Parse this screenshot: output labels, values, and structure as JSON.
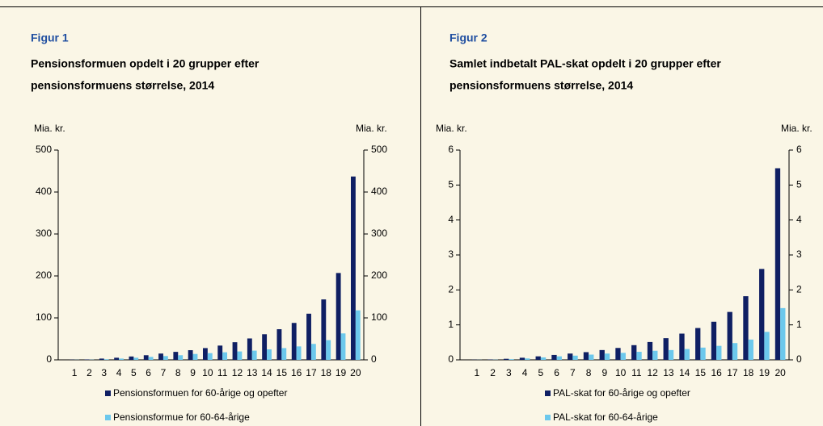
{
  "chart_data": [
    {
      "type": "bar",
      "figure": "Figur 1",
      "title": [
        "Pensionsformuen opdelt i 20 grupper efter",
        "pensionsformuens størrelse, 2014"
      ],
      "y_label": "Mia. kr.",
      "y2_label": "Mia. kr.",
      "categories": [
        "1",
        "2",
        "3",
        "4",
        "5",
        "6",
        "7",
        "8",
        "9",
        "10",
        "11",
        "12",
        "13",
        "14",
        "15",
        "16",
        "17",
        "18",
        "19",
        "20"
      ],
      "series": [
        {
          "name": "Pensionsformuen for 60-årige og opefter",
          "color": "#0f1f63",
          "values": [
            0.5,
            1,
            3,
            5,
            8,
            11,
            15,
            19,
            23,
            28,
            34,
            42,
            51,
            61,
            73,
            88,
            110,
            144,
            207,
            437
          ]
        },
        {
          "name": "Pensionsformue for 60-64-årige",
          "color": "#6cc8ec",
          "values": [
            0.3,
            0.5,
            1.5,
            3,
            5,
            7,
            9,
            11,
            14,
            16,
            18,
            20,
            22,
            25,
            28,
            32,
            38,
            47,
            63,
            118
          ]
        }
      ],
      "ylim": [
        0,
        500
      ],
      "yticks": [
        0,
        100,
        200,
        300,
        400,
        500
      ],
      "y2lim": [
        0,
        500
      ],
      "y2ticks": [
        0,
        100,
        200,
        300,
        400,
        500
      ]
    },
    {
      "type": "bar",
      "figure": "Figur 2",
      "title": [
        "Samlet indbetalt PAL-skat opdelt i 20 grupper efter",
        "pensionsformuens størrelse, 2014"
      ],
      "y_label": "Mia. kr.",
      "y2_label": "Mia. kr.",
      "categories": [
        "1",
        "2",
        "3",
        "4",
        "5",
        "6",
        "7",
        "8",
        "9",
        "10",
        "11",
        "12",
        "13",
        "14",
        "15",
        "16",
        "17",
        "18",
        "19",
        "20"
      ],
      "series": [
        {
          "name": "PAL-skat for 60-årige og opefter",
          "color": "#0f1f63",
          "values": [
            0.005,
            0.01,
            0.03,
            0.06,
            0.1,
            0.14,
            0.18,
            0.22,
            0.28,
            0.34,
            0.42,
            0.51,
            0.62,
            0.75,
            0.91,
            1.09,
            1.37,
            1.82,
            2.6,
            5.48
          ]
        },
        {
          "name": "PAL-skat for 60-64-årige",
          "color": "#6cc8ec",
          "values": [
            0.003,
            0.006,
            0.02,
            0.04,
            0.07,
            0.1,
            0.12,
            0.15,
            0.18,
            0.2,
            0.23,
            0.26,
            0.28,
            0.31,
            0.35,
            0.4,
            0.48,
            0.58,
            0.8,
            1.48
          ]
        }
      ],
      "ylim": [
        0,
        6
      ],
      "yticks": [
        0,
        1,
        2,
        3,
        4,
        5,
        6
      ],
      "y2lim": [
        0,
        6
      ],
      "y2ticks": [
        0,
        1,
        2,
        3,
        4,
        5,
        6
      ]
    }
  ]
}
